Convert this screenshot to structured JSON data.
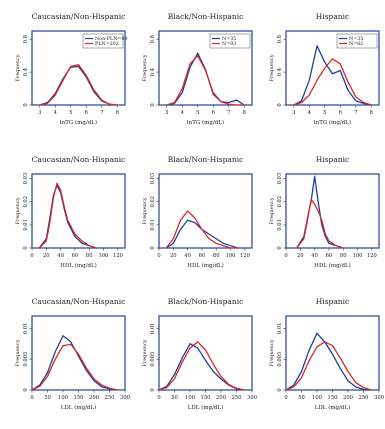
{
  "colors": {
    "blue": "#1f3f9a",
    "red": "#d42a2a",
    "frame": "#23449c",
    "axis": "#333333"
  },
  "chart_data": [
    {
      "type": "line",
      "title": "Caucasian/Non-Hispanic",
      "xlabel": "lnTG (mg/dL)",
      "ylabel": "Frequency",
      "xlim": [
        2.5,
        8.5
      ],
      "xticks": [
        3,
        4,
        5,
        6,
        7,
        8
      ],
      "ylim": [
        0,
        0.9
      ],
      "yticks": [
        0.0,
        0.4,
        0.8
      ],
      "legend": "top-right",
      "series": [
        {
          "name": "Non-PLN=89",
          "color": "blue",
          "x": [
            3,
            3.5,
            4,
            4.5,
            5,
            5.5,
            6,
            6.5,
            7,
            7.5,
            8
          ],
          "y": [
            0.0,
            0.03,
            0.14,
            0.32,
            0.46,
            0.47,
            0.34,
            0.16,
            0.05,
            0.01,
            0.0
          ]
        },
        {
          "name": "PLN=202",
          "color": "red",
          "x": [
            3,
            3.5,
            4,
            4.5,
            5,
            5.5,
            6,
            6.5,
            7,
            7.5,
            8
          ],
          "y": [
            0.0,
            0.02,
            0.12,
            0.3,
            0.47,
            0.49,
            0.36,
            0.18,
            0.06,
            0.01,
            0.0
          ]
        }
      ]
    },
    {
      "type": "line",
      "title": "Black/Non-Hispanic",
      "xlabel": "lnTG (mg/dL)",
      "ylabel": "Frequency",
      "xlim": [
        2.5,
        8.5
      ],
      "xticks": [
        3,
        4,
        5,
        6,
        7,
        8
      ],
      "ylim": [
        0,
        0.9
      ],
      "yticks": [
        0.0,
        0.4,
        0.8
      ],
      "legend": "top-right",
      "series": [
        {
          "name": "N=35",
          "color": "blue",
          "x": [
            3,
            3.5,
            4,
            4.5,
            5,
            5.5,
            6,
            6.5,
            7,
            7.5,
            8
          ],
          "y": [
            0.0,
            0.02,
            0.15,
            0.46,
            0.63,
            0.43,
            0.13,
            0.04,
            0.03,
            0.06,
            0.0
          ]
        },
        {
          "name": "N=93",
          "color": "red",
          "x": [
            3,
            3.5,
            4,
            4.5,
            5,
            5.5,
            6,
            6.5,
            7,
            7.5,
            8
          ],
          "y": [
            0.0,
            0.03,
            0.2,
            0.5,
            0.6,
            0.42,
            0.15,
            0.04,
            0.01,
            0.0,
            0.0
          ]
        }
      ]
    },
    {
      "type": "line",
      "title": "Hispanic",
      "xlabel": "lnTG (mg/dL)",
      "ylabel": "Frequency",
      "xlim": [
        2.5,
        8.5
      ],
      "xticks": [
        3,
        4,
        5,
        6,
        7,
        8
      ],
      "ylim": [
        0,
        0.9
      ],
      "yticks": [
        0.0,
        0.4,
        0.8
      ],
      "legend": "top-right",
      "series": [
        {
          "name": "N=35",
          "color": "blue",
          "x": [
            3,
            3.5,
            4,
            4.5,
            5,
            5.5,
            6,
            6.5,
            7,
            7.5,
            8
          ],
          "y": [
            0.0,
            0.05,
            0.3,
            0.72,
            0.52,
            0.38,
            0.42,
            0.18,
            0.05,
            0.02,
            0.0
          ]
        },
        {
          "name": "N=62",
          "color": "red",
          "x": [
            3,
            3.5,
            4,
            4.5,
            5,
            5.5,
            6,
            6.5,
            7,
            7.5,
            8
          ],
          "y": [
            0.0,
            0.03,
            0.12,
            0.3,
            0.45,
            0.56,
            0.5,
            0.28,
            0.1,
            0.03,
            0.0
          ]
        }
      ]
    },
    {
      "type": "line",
      "title": "Caucasian/Non-Hispanic",
      "xlabel": "HDL (mg/dL)",
      "ylabel": "Frequency",
      "xlim": [
        0,
        130
      ],
      "xticks": [
        0,
        20,
        40,
        60,
        80,
        100,
        120
      ],
      "ylim": [
        0,
        0.032
      ],
      "yticks": [
        0.0,
        0.01,
        0.02,
        0.03
      ],
      "series": [
        {
          "name": "",
          "color": "blue",
          "x": [
            10,
            20,
            25,
            30,
            35,
            40,
            45,
            50,
            60,
            70,
            80,
            90
          ],
          "y": [
            0.0,
            0.004,
            0.013,
            0.023,
            0.027,
            0.024,
            0.017,
            0.011,
            0.005,
            0.002,
            0.001,
            0.0
          ]
        },
        {
          "name": "",
          "color": "red",
          "x": [
            10,
            20,
            25,
            30,
            35,
            40,
            45,
            50,
            60,
            70,
            80,
            90
          ],
          "y": [
            0.0,
            0.003,
            0.011,
            0.022,
            0.028,
            0.025,
            0.018,
            0.012,
            0.006,
            0.003,
            0.001,
            0.0
          ]
        }
      ]
    },
    {
      "type": "line",
      "title": "Black/Non-Hispanic",
      "xlabel": "HDL (mg/dL)",
      "ylabel": "Frequency",
      "xlim": [
        0,
        130
      ],
      "xticks": [
        0,
        20,
        40,
        60,
        80,
        100,
        120
      ],
      "ylim": [
        0,
        0.032
      ],
      "yticks": [
        0.0,
        0.01,
        0.02,
        0.03
      ],
      "series": [
        {
          "name": "",
          "color": "blue",
          "x": [
            10,
            20,
            30,
            40,
            50,
            60,
            70,
            80,
            90,
            100,
            110
          ],
          "y": [
            0.0,
            0.002,
            0.008,
            0.012,
            0.011,
            0.008,
            0.006,
            0.004,
            0.002,
            0.001,
            0.0
          ]
        },
        {
          "name": "",
          "color": "red",
          "x": [
            10,
            20,
            30,
            40,
            50,
            60,
            70,
            80,
            90,
            100,
            110
          ],
          "y": [
            0.0,
            0.004,
            0.012,
            0.016,
            0.013,
            0.008,
            0.004,
            0.002,
            0.001,
            0.0,
            0.0
          ]
        }
      ]
    },
    {
      "type": "line",
      "title": "Hispanic",
      "xlabel": "HDL (mg/dL)",
      "ylabel": "Frequency",
      "xlim": [
        0,
        130
      ],
      "xticks": [
        0,
        20,
        40,
        60,
        80,
        100,
        120
      ],
      "ylim": [
        0,
        0.032
      ],
      "yticks": [
        0.0,
        0.01,
        0.02,
        0.03
      ],
      "series": [
        {
          "name": "",
          "color": "blue",
          "x": [
            15,
            25,
            30,
            35,
            40,
            45,
            50,
            55,
            60,
            70,
            80
          ],
          "y": [
            0.0,
            0.005,
            0.013,
            0.02,
            0.031,
            0.02,
            0.01,
            0.005,
            0.002,
            0.001,
            0.0
          ]
        },
        {
          "name": "",
          "color": "red",
          "x": [
            15,
            25,
            30,
            35,
            40,
            45,
            50,
            55,
            60,
            70,
            80
          ],
          "y": [
            0.0,
            0.004,
            0.012,
            0.021,
            0.019,
            0.016,
            0.012,
            0.006,
            0.003,
            0.001,
            0.0
          ]
        }
      ]
    },
    {
      "type": "line",
      "title": "Caucasian/Non-Hispanic",
      "xlabel": "LDL (mg/dL)",
      "ylabel": "Frequency",
      "xlim": [
        0,
        300
      ],
      "xticks": [
        0,
        50,
        100,
        150,
        200,
        250,
        300
      ],
      "ylim": [
        0,
        0.012
      ],
      "yticks": [
        0.0,
        0.005,
        0.01
      ],
      "series": [
        {
          "name": "",
          "color": "blue",
          "x": [
            0,
            25,
            50,
            75,
            100,
            125,
            150,
            175,
            200,
            225,
            250,
            275
          ],
          "y": [
            0.0,
            0.0008,
            0.0028,
            0.0062,
            0.0088,
            0.0078,
            0.0055,
            0.0032,
            0.0015,
            0.0005,
            0.0002,
            0.0
          ]
        },
        {
          "name": "",
          "color": "red",
          "x": [
            0,
            25,
            50,
            75,
            100,
            125,
            150,
            175,
            200,
            225,
            250,
            275
          ],
          "y": [
            0.0,
            0.0006,
            0.0022,
            0.005,
            0.0072,
            0.0074,
            0.0058,
            0.0036,
            0.0018,
            0.0008,
            0.0003,
            0.0
          ]
        }
      ]
    },
    {
      "type": "line",
      "title": "Black/Non-Hispanic",
      "xlabel": "LDL (mg/dL)",
      "ylabel": "Frequency",
      "xlim": [
        0,
        300
      ],
      "xticks": [
        0,
        50,
        100,
        150,
        200,
        250,
        300
      ],
      "ylim": [
        0,
        0.012
      ],
      "yticks": [
        0.0,
        0.005,
        0.01
      ],
      "series": [
        {
          "name": "",
          "color": "blue",
          "x": [
            0,
            25,
            50,
            75,
            100,
            125,
            150,
            175,
            200,
            225,
            250,
            275
          ],
          "y": [
            0.0,
            0.0006,
            0.0025,
            0.0052,
            0.0075,
            0.0068,
            0.0048,
            0.003,
            0.0018,
            0.0008,
            0.0002,
            0.0
          ]
        },
        {
          "name": "",
          "color": "red",
          "x": [
            0,
            25,
            50,
            75,
            100,
            125,
            150,
            175,
            200,
            225,
            250,
            275
          ],
          "y": [
            0.0,
            0.0004,
            0.0018,
            0.0045,
            0.0068,
            0.0078,
            0.0065,
            0.0042,
            0.0022,
            0.0009,
            0.0003,
            0.0
          ]
        }
      ]
    },
    {
      "type": "line",
      "title": "Hispanic",
      "xlabel": "LDL (mg/dL)",
      "ylabel": "Frequency",
      "xlim": [
        0,
        300
      ],
      "xticks": [
        0,
        50,
        100,
        150,
        200,
        250,
        300
      ],
      "ylim": [
        0,
        0.012
      ],
      "yticks": [
        0.0,
        0.005,
        0.01
      ],
      "series": [
        {
          "name": "",
          "color": "blue",
          "x": [
            0,
            25,
            50,
            75,
            100,
            125,
            150,
            175,
            200,
            225,
            250,
            275
          ],
          "y": [
            0.0,
            0.0008,
            0.003,
            0.0065,
            0.0092,
            0.0078,
            0.0058,
            0.0035,
            0.0015,
            0.0005,
            0.0001,
            0.0
          ]
        },
        {
          "name": "",
          "color": "red",
          "x": [
            0,
            25,
            50,
            75,
            100,
            125,
            150,
            175,
            200,
            225,
            250,
            275
          ],
          "y": [
            0.0,
            0.0005,
            0.002,
            0.0048,
            0.007,
            0.0078,
            0.0072,
            0.0052,
            0.003,
            0.0012,
            0.0004,
            0.0
          ]
        }
      ]
    }
  ]
}
